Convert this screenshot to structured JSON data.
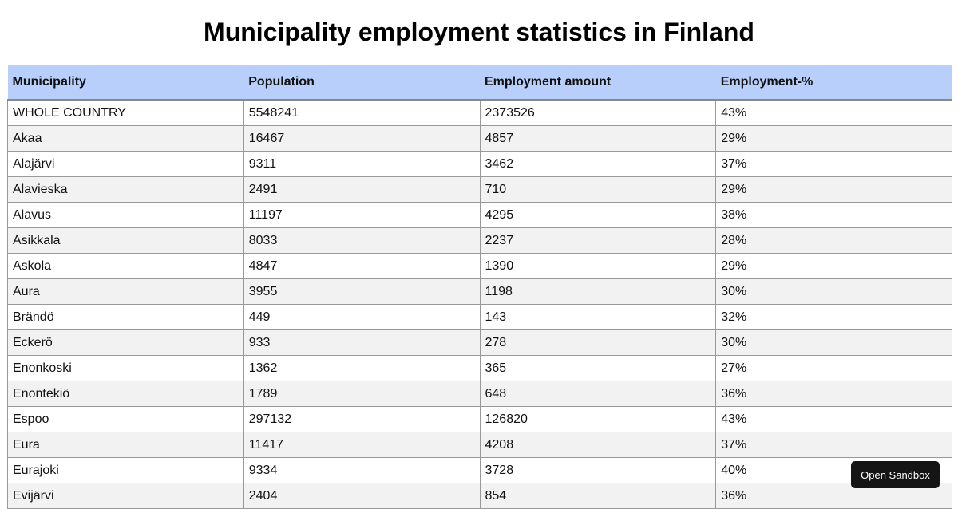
{
  "header": {
    "title": "Municipality employment statistics in Finland"
  },
  "table": {
    "columns": [
      "Municipality",
      "Population",
      "Employment amount",
      "Employment-%"
    ],
    "rows": [
      [
        "WHOLE COUNTRY",
        "5548241",
        "2373526",
        "43%"
      ],
      [
        "Akaa",
        "16467",
        "4857",
        "29%"
      ],
      [
        "Alajärvi",
        "9311",
        "3462",
        "37%"
      ],
      [
        "Alavieska",
        "2491",
        "710",
        "29%"
      ],
      [
        "Alavus",
        "11197",
        "4295",
        "38%"
      ],
      [
        "Asikkala",
        "8033",
        "2237",
        "28%"
      ],
      [
        "Askola",
        "4847",
        "1390",
        "29%"
      ],
      [
        "Aura",
        "3955",
        "1198",
        "30%"
      ],
      [
        "Brändö",
        "449",
        "143",
        "32%"
      ],
      [
        "Eckerö",
        "933",
        "278",
        "30%"
      ],
      [
        "Enonkoski",
        "1362",
        "365",
        "27%"
      ],
      [
        "Enontekiö",
        "1789",
        "648",
        "36%"
      ],
      [
        "Espoo",
        "297132",
        "126820",
        "43%"
      ],
      [
        "Eura",
        "11417",
        "4208",
        "37%"
      ],
      [
        "Eurajoki",
        "9334",
        "3728",
        "40%"
      ],
      [
        "Evijärvi",
        "2404",
        "854",
        "36%"
      ]
    ]
  },
  "sandbox_button": {
    "label": "Open Sandbox"
  }
}
